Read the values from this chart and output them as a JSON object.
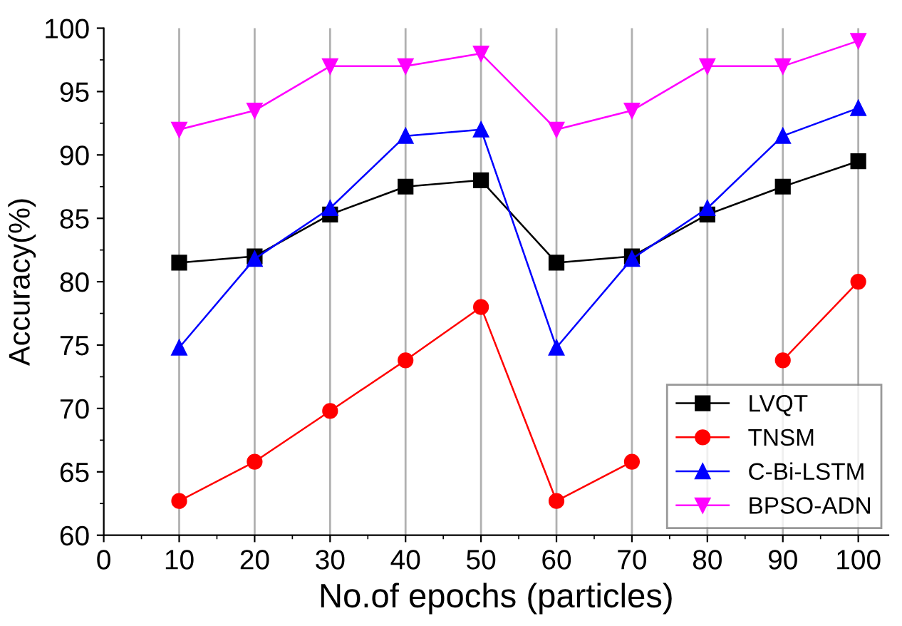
{
  "chart_data": {
    "type": "line",
    "xlabel": "No.of epochs (particles)",
    "ylabel": "Accuracy(%)",
    "x": [
      10,
      20,
      30,
      40,
      50,
      60,
      70,
      80,
      90,
      100
    ],
    "series": [
      {
        "name": "LVQT",
        "color": "#000000",
        "marker": "square",
        "values": [
          81.5,
          82,
          85.3,
          87.5,
          88,
          81.5,
          82,
          85.3,
          87.5,
          89.5
        ]
      },
      {
        "name": "TNSM",
        "color": "#ff0000",
        "marker": "circle",
        "values": [
          62.7,
          65.8,
          69.8,
          73.8,
          78,
          62.7,
          65.8,
          null,
          73.8,
          80
        ]
      },
      {
        "name": "C-Bi-LSTM",
        "color": "#0000ff",
        "marker": "triangle",
        "values": [
          74.8,
          81.8,
          85.8,
          91.5,
          92,
          74.8,
          81.8,
          85.8,
          91.5,
          93.7
        ]
      },
      {
        "name": "BPSO-ADN",
        "color": "#ff00ff",
        "marker": "triangle_down",
        "values": [
          92,
          93.5,
          97,
          97,
          98,
          92,
          93.5,
          97,
          97,
          99
        ]
      }
    ],
    "xlim": [
      0,
      104
    ],
    "xticks": [
      0,
      10,
      20,
      30,
      40,
      50,
      60,
      70,
      80,
      90,
      100
    ],
    "ylim": [
      60,
      100
    ],
    "yticks": [
      60,
      65,
      70,
      75,
      80,
      85,
      90,
      95,
      100
    ],
    "grid": "x",
    "legend": "bottom right"
  }
}
